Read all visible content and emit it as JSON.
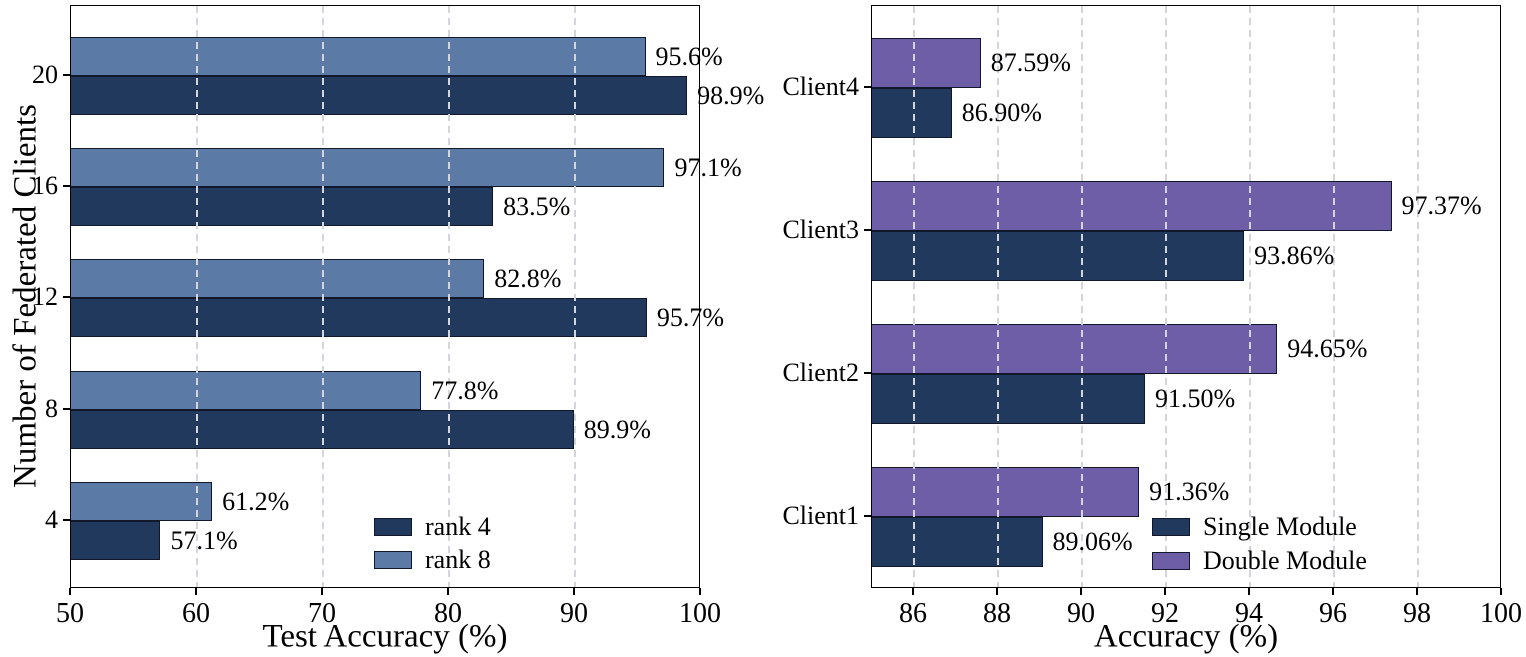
{
  "figure": {
    "background": "#ffffff"
  },
  "colors": {
    "axis": "#000000",
    "grid": "#d2d6dc",
    "navy": "#20395c",
    "steel_blue": "#5b7aa6",
    "purple": "#6e5ea8"
  },
  "chart_data": [
    {
      "type": "bar",
      "orientation": "horizontal",
      "title": "",
      "xlabel": "Test Accuracy (%)",
      "ylabel": "Number of Federated Clients",
      "categories": [
        "4",
        "8",
        "12",
        "16",
        "20"
      ],
      "xlim": [
        50,
        100
      ],
      "xticks": [
        "50",
        "60",
        "70",
        "80",
        "90",
        "100"
      ],
      "grid": true,
      "legend_position": "lower right",
      "series": [
        {
          "name": "rank 4",
          "color": "#20395c",
          "values": [
            57.1,
            89.9,
            95.7,
            83.5,
            98.9
          ],
          "value_labels": [
            "57.1%",
            "89.9%",
            "95.7%",
            "83.5%",
            "98.9%"
          ]
        },
        {
          "name": "rank 8",
          "color": "#5b7aa6",
          "values": [
            61.2,
            77.8,
            82.8,
            97.1,
            95.6
          ],
          "value_labels": [
            "61.2%",
            "77.8%",
            "82.8%",
            "97.1%",
            "95.6%"
          ]
        }
      ]
    },
    {
      "type": "bar",
      "orientation": "horizontal",
      "title": "",
      "xlabel": "Accuracy (%)",
      "ylabel": "",
      "categories": [
        "Client1",
        "Client2",
        "Client3",
        "Client4"
      ],
      "xlim": [
        85,
        100
      ],
      "xticks": [
        "86",
        "88",
        "90",
        "92",
        "94",
        "96",
        "98",
        "100"
      ],
      "grid": true,
      "legend_position": "lower right",
      "series": [
        {
          "name": "Single Module",
          "color": "#20395c",
          "values": [
            89.06,
            91.5,
            93.86,
            86.9
          ],
          "value_labels": [
            "89.06%",
            "91.50%",
            "93.86%",
            "86.90%"
          ]
        },
        {
          "name": "Double Module",
          "color": "#6e5ea8",
          "values": [
            91.36,
            94.65,
            97.37,
            87.59
          ],
          "value_labels": [
            "91.36%",
            "94.65%",
            "97.37%",
            "87.59%"
          ]
        }
      ]
    }
  ]
}
